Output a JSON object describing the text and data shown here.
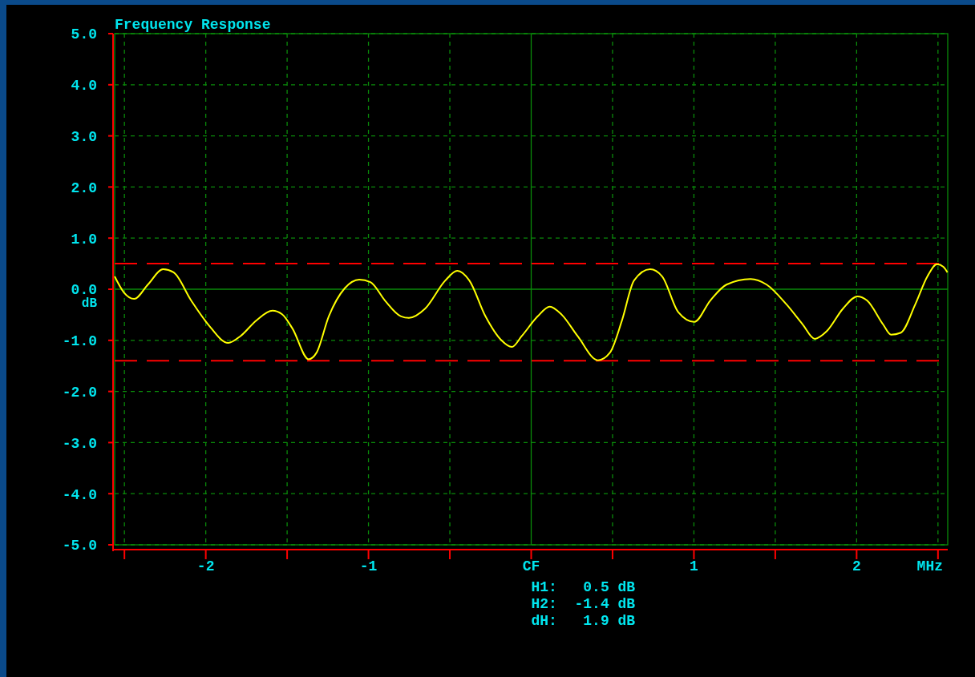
{
  "chart_data": {
    "type": "line",
    "title": "Frequency Response",
    "xlabel": "MHz",
    "ylabel": "dB",
    "xlim": [
      -2.56,
      2.56
    ],
    "xticks": [
      {
        "value": -2.5,
        "label": null
      },
      -2,
      {
        "value": -1.5,
        "label": null
      },
      -1,
      {
        "value": -0.5,
        "label": null
      },
      {
        "value": 0,
        "label": "CF"
      },
      {
        "value": 0.5,
        "label": null
      },
      1,
      {
        "value": 1.5,
        "label": null
      },
      2,
      {
        "value": 2.5,
        "label": null
      }
    ],
    "ylim": [
      -5,
      5
    ],
    "yticks": [
      {
        "value": -5,
        "label": "-5.0"
      },
      {
        "value": -4,
        "label": "-4.0"
      },
      {
        "value": -3,
        "label": "-3.0"
      },
      {
        "value": -2,
        "label": "-2.0"
      },
      {
        "value": -1,
        "label": "-1.0"
      },
      {
        "value": 0,
        "label": "0.0"
      },
      {
        "value": 1,
        "label": "1.0"
      },
      {
        "value": 2,
        "label": "2.0"
      },
      {
        "value": 3,
        "label": "3.0"
      },
      {
        "value": 4,
        "label": "4.0"
      },
      {
        "value": 5,
        "label": "5.0"
      }
    ],
    "grid": true,
    "line_style": "solid",
    "series": [
      {
        "color": "#ffff00",
        "x": [
          -2.56,
          -2.504,
          -2.44,
          -2.356,
          -2.262,
          -2.198,
          -2.09,
          -1.985,
          -1.862,
          -1.788,
          -1.689,
          -1.59,
          -1.531,
          -1.467,
          -1.368,
          -1.319,
          -1.244,
          -1.146,
          -1.057,
          -0.988,
          -0.899,
          -0.8,
          -0.751,
          -0.652,
          -0.528,
          -0.454,
          -0.38,
          -0.281,
          -0.183,
          -0.119,
          -0.059,
          0.04,
          0.114,
          0.188,
          0.286,
          0.41,
          0.484,
          0.558,
          0.632,
          0.731,
          0.805,
          0.904,
          1.002,
          1.101,
          1.2,
          1.348,
          1.447,
          1.57,
          1.669,
          1.743,
          1.817,
          1.916,
          2.005,
          2.064,
          2.163,
          2.212,
          2.272,
          2.36,
          2.435,
          2.494,
          2.533,
          2.558
        ],
        "values": [
          0.25,
          -0.06,
          -0.19,
          0.09,
          0.39,
          0.33,
          -0.22,
          -0.69,
          -1.05,
          -0.92,
          -0.61,
          -0.42,
          -0.49,
          -0.77,
          -1.37,
          -1.24,
          -0.53,
          0.02,
          0.19,
          0.14,
          -0.22,
          -0.53,
          -0.56,
          -0.38,
          0.17,
          0.36,
          0.17,
          -0.53,
          -1.0,
          -1.13,
          -0.92,
          -0.53,
          -0.34,
          -0.5,
          -0.92,
          -1.39,
          -1.24,
          -0.61,
          0.17,
          0.39,
          0.25,
          -0.45,
          -0.64,
          -0.22,
          0.09,
          0.2,
          0.09,
          -0.3,
          -0.69,
          -0.97,
          -0.82,
          -0.38,
          -0.14,
          -0.22,
          -0.69,
          -0.89,
          -0.85,
          -0.3,
          0.25,
          0.49,
          0.44,
          0.33
        ]
      }
    ],
    "ref_lines": [
      {
        "axis": "y",
        "value": 0.5,
        "color": "#ff0000",
        "line_style": "dashed"
      },
      {
        "axis": "y",
        "value": -1.4,
        "color": "#ff0000",
        "line_style": "dashed"
      }
    ],
    "annotations": [
      "H1:   0.5 dB",
      "H2:  -1.4 dB",
      "dH:   1.9 dB"
    ]
  }
}
